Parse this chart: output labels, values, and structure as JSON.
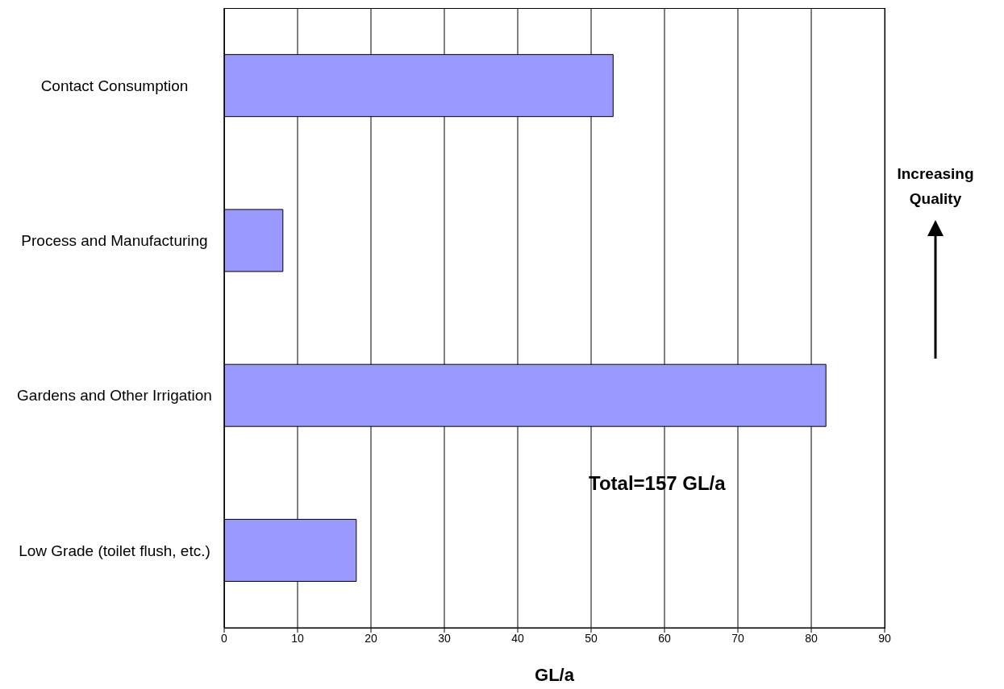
{
  "chart_data": {
    "type": "bar",
    "orientation": "horizontal",
    "xlabel": "GL/a",
    "categories": [
      "Contact Consumption",
      "Process and Manufacturing",
      "Gardens and Other Irrigation",
      "Low Grade (toilet flush, etc.)"
    ],
    "values": [
      53,
      8,
      82,
      18
    ],
    "color": "#9999ff",
    "xlim": [
      0,
      90
    ],
    "xticks": [
      0,
      10,
      20,
      30,
      40,
      50,
      60,
      70,
      80,
      90
    ],
    "grid": "x",
    "annotations": [
      "Total=157 GL/a",
      "Increasing Quality"
    ]
  }
}
